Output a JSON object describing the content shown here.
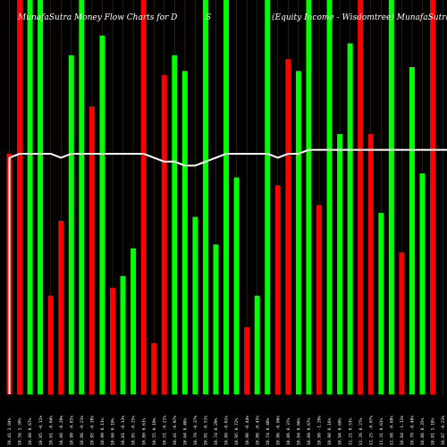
{
  "chart_data": {
    "type": "bar",
    "title_left": "MunafaSutra  Money Flow  Charts for D",
    "title_mid": "S",
    "title_right": "(Equity Income - Wisdomtree) MunafaSutra.com",
    "xlabel": "",
    "ylabel": "",
    "ylim": [
      0,
      100
    ],
    "grid": false,
    "colors": {
      "up": "#00ff00",
      "down": "#ff0000",
      "line": "#ffffff",
      "background": "#000000",
      "grid": "#8b5a2b"
    },
    "categories": [
      "10.41 2.04%",
      "10.56 1.30%",
      "10.80 0.67%",
      "10.85 -0.11%",
      "10.61 -0.04%",
      "10.86 -0.29%",
      "10.99 -0.81%",
      "10.86 -0.21%",
      "10.95 -0.38%",
      "10.99 0.11%",
      "10.66 0.10%",
      "10.81 -0.13%",
      "10.85 -0.25%",
      "10.80 0.61%",
      "10.55 0.19%",
      "10.51 -0.22%",
      "10.41 -0.97%",
      "10.64 0.48%",
      "10.70 -0.37%",
      "10.91 -0.51%",
      "10.74 0.29%",
      "10.80 -0.61%",
      "10.95 0.72%",
      "10.98 -0.44%",
      "10.86 -0.43%",
      "10.74 0.48%",
      "10.96 -0.06%",
      "10.86 0.37%",
      "10.84 0.86%",
      "10.89 0.67%",
      "10.90 -1.26%",
      "10.98 0.16%",
      "10.94 0.69%",
      "11.21 0.51%",
      "11.26 0.27%",
      "11.25 -0.07%",
      "11.31 0.61%",
      "11.08 -0.68%",
      "10.84 -1.11%",
      "10.70 -0.40%",
      "10.86 0.35%",
      "10.81 1.18%",
      "10.87 -0.23%",
      "11.04 0.64%",
      "11.27 0.44%",
      "11.36 0.08%",
      "11.11 0.38%",
      "11.21 -0.77%",
      "11.20 -0.18%",
      "11.22 -0.37%"
    ],
    "series": [
      {
        "values": [
          61,
          100,
          100,
          100,
          25,
          44,
          86,
          100,
          73,
          91,
          27,
          30,
          37,
          100,
          13,
          81,
          86,
          82,
          45,
          100,
          38,
          100,
          55,
          17,
          25,
          100,
          53,
          85,
          82,
          100,
          48,
          100,
          66,
          89,
          100,
          66,
          46,
          100,
          36,
          83,
          56,
          100,
          0,
          0,
          0,
          0,
          0,
          0,
          0,
          0
        ],
        "updown": [
          "down",
          "down",
          "up",
          "up",
          "down",
          "down",
          "up",
          "up",
          "down",
          "up",
          "down",
          "up",
          "up",
          "down",
          "down",
          "down",
          "up",
          "up",
          "up",
          "up",
          "up",
          "up",
          "up",
          "down",
          "up",
          "up",
          "down",
          "down",
          "up",
          "up",
          "down",
          "up",
          "up",
          "up",
          "down",
          "down",
          "up",
          "up",
          "down",
          "up",
          "up",
          "down",
          "down",
          "down",
          "down",
          "down",
          "down",
          "down",
          "down",
          "down"
        ]
      }
    ],
    "line_values": [
      60,
      61,
      61,
      61,
      61,
      60,
      61,
      61,
      61,
      61,
      61,
      61,
      61,
      61,
      60,
      59,
      59,
      58,
      58,
      59,
      60,
      61,
      61,
      61,
      61,
      61,
      60,
      61,
      61,
      62,
      62,
      62,
      62,
      62,
      62,
      62,
      62,
      62,
      62,
      62,
      62,
      62,
      62,
      62,
      62,
      62,
      62,
      62,
      62,
      62
    ]
  }
}
